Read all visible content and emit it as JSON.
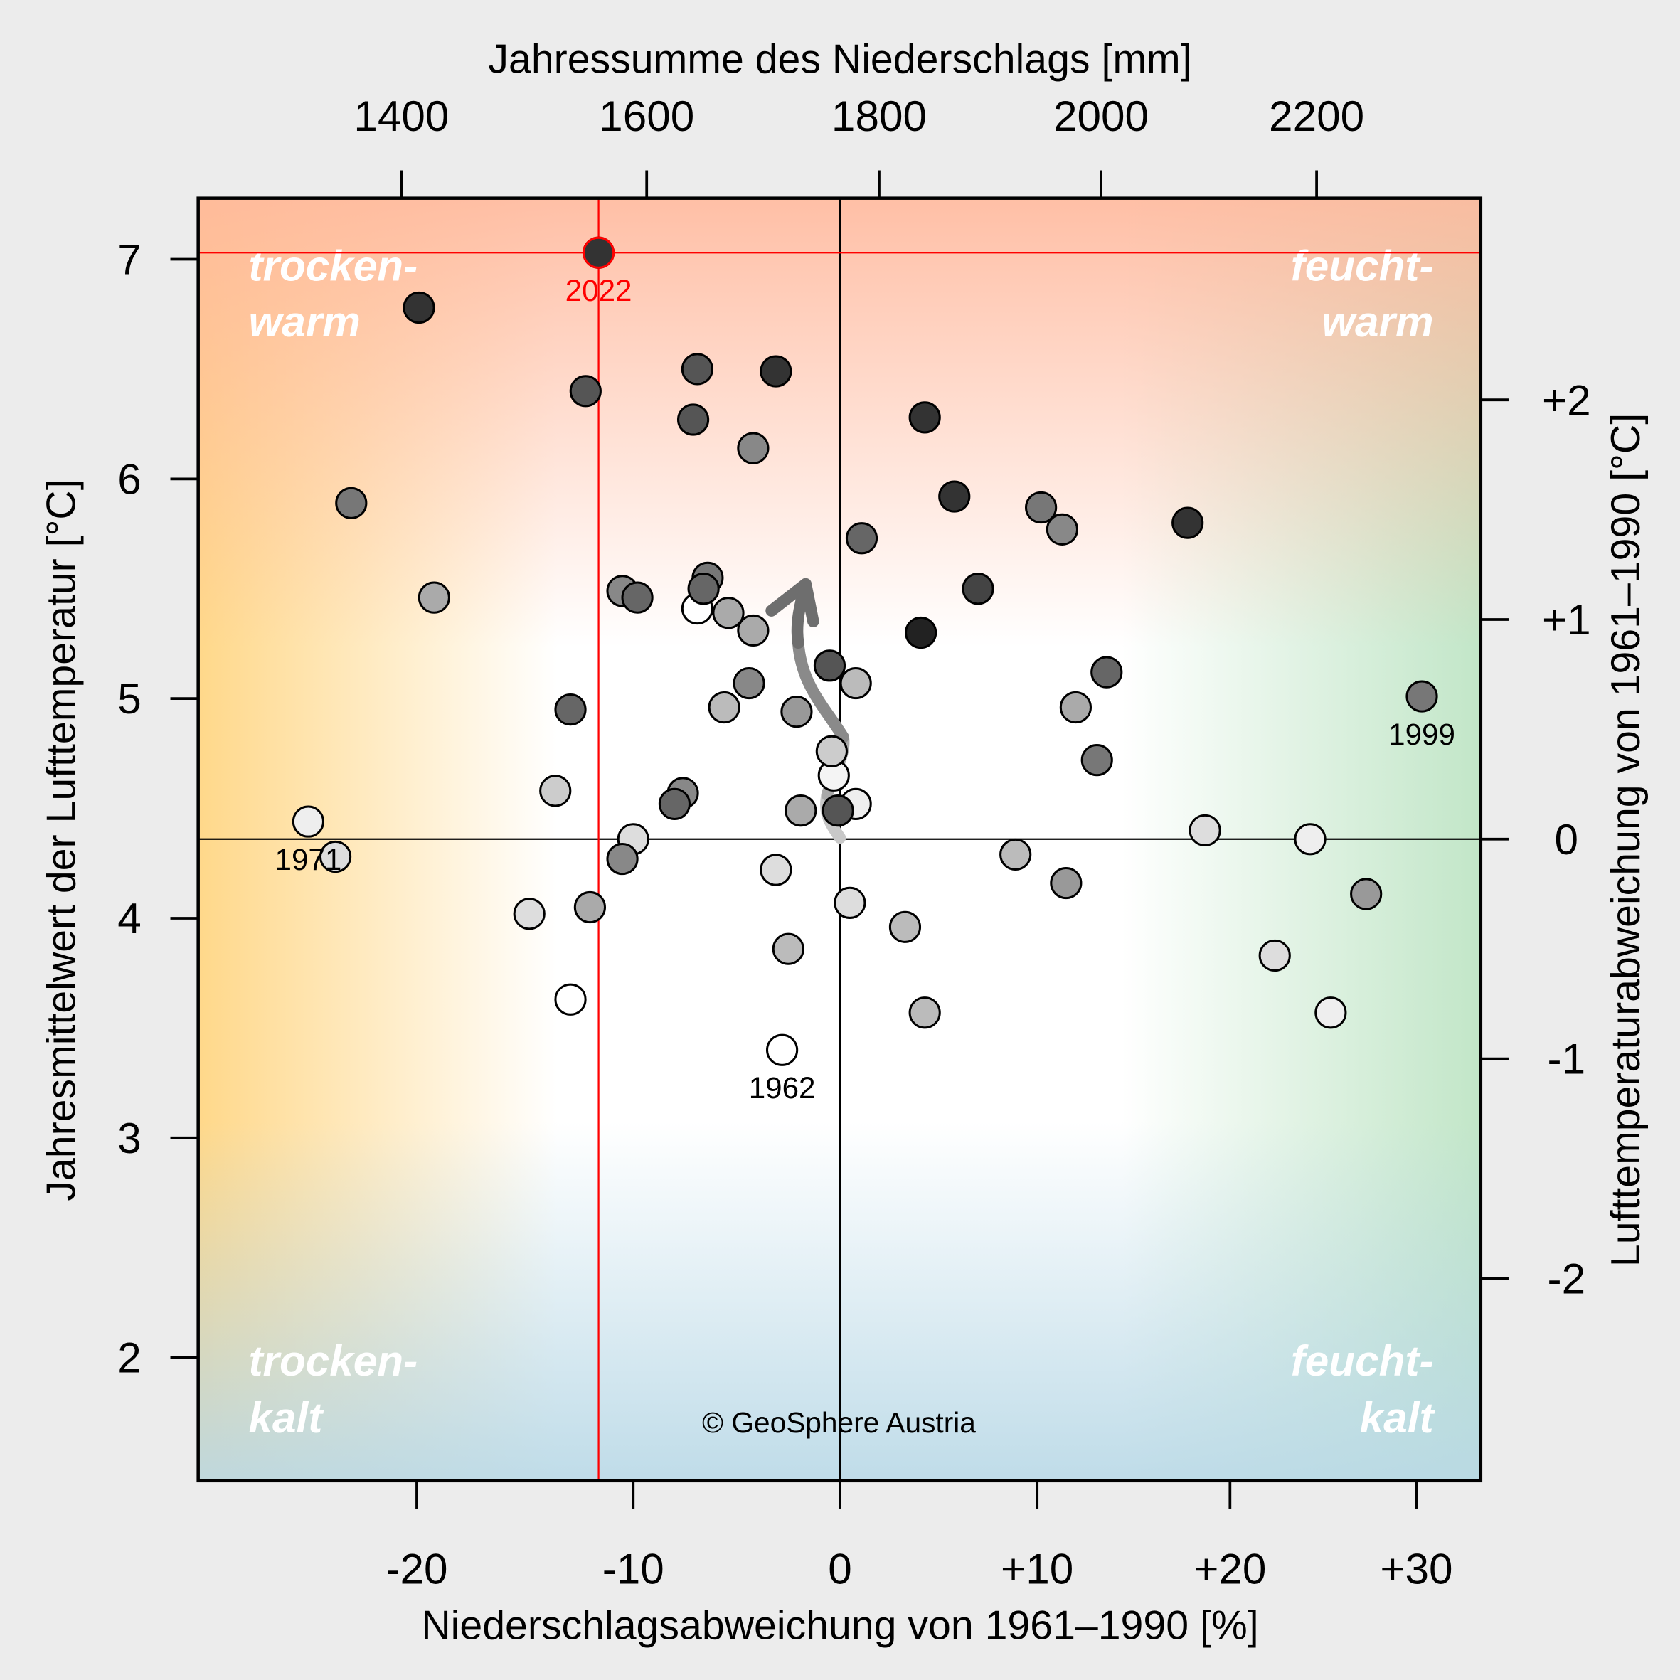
{
  "chart_data": {
    "type": "scatter",
    "xlabel": "Niederschlagsabweichung von 1961–1990 [%]",
    "x2label": "Jahressumme des Niederschlags [mm]",
    "ylabel": "Jahresmittelwert der Lufttemperatur [°C]",
    "y2label": "Lufttemperaturabweichung von 1961–1990 [°C]",
    "x_ticks": [
      -20,
      -10,
      0,
      10,
      20,
      30
    ],
    "x_tick_labels": [
      "-20",
      "-10",
      "0",
      "+10",
      "+20",
      "+30"
    ],
    "x2_ticks": [
      1400,
      1600,
      1800,
      2000,
      2200
    ],
    "x2_tick_labels": [
      "1400",
      "1600",
      "1800",
      "2000",
      "2200"
    ],
    "y_ticks": [
      2,
      3,
      4,
      5,
      6,
      7
    ],
    "y_tick_labels": [
      "2",
      "3",
      "4",
      "5",
      "6",
      "7"
    ],
    "y2_ticks": [
      2,
      1,
      0,
      -1,
      -2
    ],
    "y2_tick_labels": [
      "+2",
      "+1",
      "0",
      "-1",
      "-2"
    ],
    "xlim": [
      -30,
      33
    ],
    "ylim": [
      1.45,
      7.3
    ],
    "grid": false,
    "quadrant_labels": {
      "top_left": [
        "trocken-",
        "warm"
      ],
      "top_right": [
        "feucht-",
        "warm"
      ],
      "bottom_left": [
        "trocken-",
        "kalt"
      ],
      "bottom_right": [
        "feucht-",
        "kalt"
      ]
    },
    "highlight": {
      "label": "2022",
      "x": -11.6,
      "y": 7.03,
      "color": "#ff0000"
    },
    "annotations": [
      {
        "label": "1971",
        "x": -24.8,
        "y": 4.44
      },
      {
        "label": "1999",
        "x": 30.3,
        "y": 5.01
      },
      {
        "label": "1962",
        "x": -2.8,
        "y": 3.4
      }
    ],
    "copyright": "© GeoSphere Austria",
    "colors": {
      "warm_dry": "#ffd88a",
      "warm": "#ffb89c",
      "wet": "#c2e6c8",
      "cold": "#b8d8e6",
      "highlight_line": "#ff0000"
    },
    "points": [
      {
        "x": -11.6,
        "y": 7.03,
        "shade": "#333333"
      },
      {
        "x": -19.9,
        "y": 6.78,
        "shade": "#333333"
      },
      {
        "x": -6.9,
        "y": 6.5,
        "shade": "#555555"
      },
      {
        "x": -3.1,
        "y": 6.49,
        "shade": "#333333"
      },
      {
        "x": -12.2,
        "y": 6.4,
        "shade": "#555555"
      },
      {
        "x": -7.1,
        "y": 6.27,
        "shade": "#555555"
      },
      {
        "x": -4.2,
        "y": 6.14,
        "shade": "#888888"
      },
      {
        "x": 4.3,
        "y": 6.28,
        "shade": "#333333"
      },
      {
        "x": -22.9,
        "y": 5.89,
        "shade": "#777777"
      },
      {
        "x": 5.8,
        "y": 5.92,
        "shade": "#333333"
      },
      {
        "x": 10.2,
        "y": 5.87,
        "shade": "#777777"
      },
      {
        "x": 11.3,
        "y": 5.77,
        "shade": "#888888"
      },
      {
        "x": 17.8,
        "y": 5.8,
        "shade": "#333333"
      },
      {
        "x": 1.1,
        "y": 5.73,
        "shade": "#666666"
      },
      {
        "x": -19.2,
        "y": 5.46,
        "shade": "#aaaaaa"
      },
      {
        "x": -10.5,
        "y": 5.49,
        "shade": "#888888"
      },
      {
        "x": -9.8,
        "y": 5.46,
        "shade": "#666666"
      },
      {
        "x": -6.4,
        "y": 5.55,
        "shade": "#777777"
      },
      {
        "x": -6.9,
        "y": 5.41,
        "shade": "#ffffff"
      },
      {
        "x": -6.6,
        "y": 5.5,
        "shade": "#666666"
      },
      {
        "x": -5.4,
        "y": 5.39,
        "shade": "#aaaaaa"
      },
      {
        "x": -4.2,
        "y": 5.31,
        "shade": "#aaaaaa"
      },
      {
        "x": 7.0,
        "y": 5.5,
        "shade": "#444444"
      },
      {
        "x": 4.1,
        "y": 5.3,
        "shade": "#222222"
      },
      {
        "x": -0.5,
        "y": 5.15,
        "shade": "#555555"
      },
      {
        "x": 0.8,
        "y": 5.07,
        "shade": "#bbbbbb"
      },
      {
        "x": -4.4,
        "y": 5.07,
        "shade": "#888888"
      },
      {
        "x": -5.6,
        "y": 4.96,
        "shade": "#bbbbbb"
      },
      {
        "x": -2.1,
        "y": 4.94,
        "shade": "#999999"
      },
      {
        "x": -12.9,
        "y": 4.95,
        "shade": "#666666"
      },
      {
        "x": 13.6,
        "y": 5.12,
        "shade": "#666666"
      },
      {
        "x": 12.0,
        "y": 4.96,
        "shade": "#aaaaaa"
      },
      {
        "x": 30.3,
        "y": 5.01,
        "shade": "#777777"
      },
      {
        "x": -0.3,
        "y": 4.65,
        "shade": "#f4f4f4"
      },
      {
        "x": -0.4,
        "y": 4.76,
        "shade": "#cccccc"
      },
      {
        "x": 0.8,
        "y": 4.52,
        "shade": "#eeeeee"
      },
      {
        "x": -1.9,
        "y": 4.49,
        "shade": "#aaaaaa"
      },
      {
        "x": -0.1,
        "y": 4.49,
        "shade": "#555555"
      },
      {
        "x": -7.6,
        "y": 4.57,
        "shade": "#888888"
      },
      {
        "x": -8.0,
        "y": 4.52,
        "shade": "#666666"
      },
      {
        "x": -13.6,
        "y": 4.58,
        "shade": "#cccccc"
      },
      {
        "x": 13.1,
        "y": 4.72,
        "shade": "#777777"
      },
      {
        "x": -23.6,
        "y": 4.28,
        "shade": "#dddddd"
      },
      {
        "x": -24.8,
        "y": 4.44,
        "shade": "#eeeeee"
      },
      {
        "x": -10.0,
        "y": 4.36,
        "shade": "#dddddd"
      },
      {
        "x": -10.5,
        "y": 4.27,
        "shade": "#888888"
      },
      {
        "x": -3.1,
        "y": 4.22,
        "shade": "#dddddd"
      },
      {
        "x": 8.9,
        "y": 4.29,
        "shade": "#bbbbbb"
      },
      {
        "x": 11.5,
        "y": 4.16,
        "shade": "#999999"
      },
      {
        "x": 18.7,
        "y": 4.4,
        "shade": "#dddddd"
      },
      {
        "x": 24.3,
        "y": 4.36,
        "shade": "#eeeeee"
      },
      {
        "x": 27.3,
        "y": 4.11,
        "shade": "#999999"
      },
      {
        "x": -14.8,
        "y": 4.02,
        "shade": "#dddddd"
      },
      {
        "x": -12.0,
        "y": 4.05,
        "shade": "#aaaaaa"
      },
      {
        "x": 0.5,
        "y": 4.07,
        "shade": "#dddddd"
      },
      {
        "x": 3.3,
        "y": 3.96,
        "shade": "#bbbbbb"
      },
      {
        "x": -2.5,
        "y": 3.86,
        "shade": "#bbbbbb"
      },
      {
        "x": 22.4,
        "y": 3.83,
        "shade": "#dddddd"
      },
      {
        "x": -12.9,
        "y": 3.63,
        "shade": "#ffffff"
      },
      {
        "x": 4.3,
        "y": 3.57,
        "shade": "#bbbbbb"
      },
      {
        "x": 25.4,
        "y": 3.57,
        "shade": "#eeeeee"
      },
      {
        "x": -2.8,
        "y": 3.4,
        "shade": "#ffffff"
      }
    ]
  }
}
